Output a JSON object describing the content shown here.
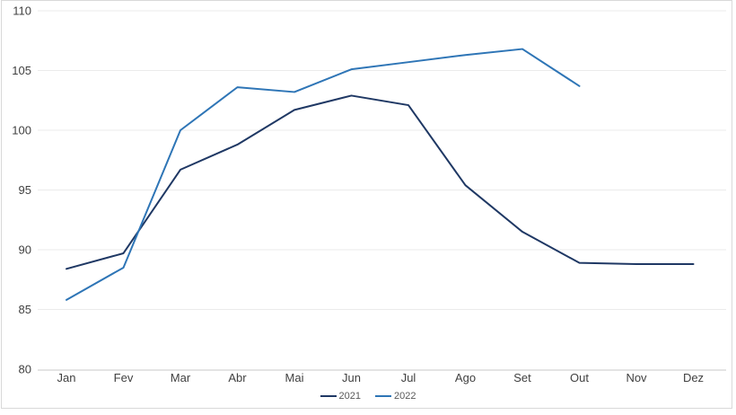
{
  "chart_data": {
    "type": "line",
    "title": "",
    "xlabel": "",
    "ylabel": "",
    "categories": [
      "Jan",
      "Fev",
      "Mar",
      "Abr",
      "Mai",
      "Jun",
      "Jul",
      "Ago",
      "Set",
      "Out",
      "Nov",
      "Dez"
    ],
    "series": [
      {
        "name": "2021",
        "color": "#1F3864",
        "values": [
          88.4,
          89.7,
          96.7,
          98.8,
          101.7,
          102.9,
          102.1,
          95.4,
          91.5,
          88.9,
          88.8,
          88.8
        ]
      },
      {
        "name": "2022",
        "color": "#2E75B6",
        "values": [
          85.8,
          88.5,
          100.0,
          103.6,
          103.2,
          105.1,
          105.7,
          106.3,
          106.8,
          103.7,
          null,
          null
        ]
      }
    ],
    "ylim": [
      80,
      110
    ],
    "yticks": [
      80,
      85,
      90,
      95,
      100,
      105,
      110
    ],
    "grid": "horizontal-only",
    "gridline_color": "#ebebeb",
    "axis_line_color": "#c8c8c8",
    "tick_label_color": "#404040",
    "legend_position": "bottom-center",
    "background_color": "#ffffff",
    "frame_border_color": "#d9d9d9"
  }
}
